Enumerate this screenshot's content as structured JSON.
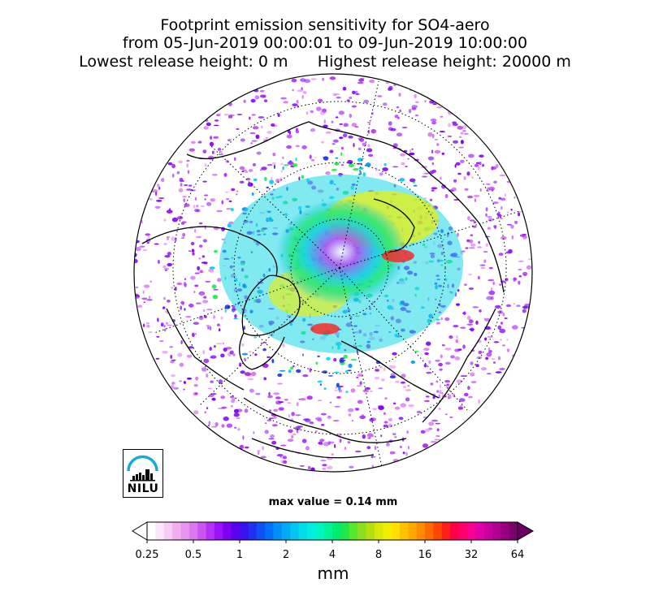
{
  "title": {
    "line1": "Footprint emission sensitivity for SO4-aero",
    "line2": "from 05-Jun-2019 00:00:01 to 09-Jun-2019 10:00:00",
    "line3": "Lowest release height: 0 m      Highest release height: 20000 m"
  },
  "logo": {
    "text": "NILU",
    "icon": "nilu-logo-icon"
  },
  "max_value_label": "max value = 0.14 mm",
  "colorbar": {
    "unit": "mm",
    "ticks": [
      "0.25",
      "0.5",
      "1",
      "2",
      "4",
      "8",
      "16",
      "32",
      "64"
    ],
    "extend": "both",
    "colors": [
      "#ffffff",
      "#fbe6fb",
      "#f7ccf7",
      "#f0b0f0",
      "#e796ef",
      "#dc78ef",
      "#cc55f2",
      "#b52ff5",
      "#9a10f7",
      "#7d00f5",
      "#5a00f0",
      "#3a10f0",
      "#2030f0",
      "#1050f5",
      "#0070f8",
      "#0090f8",
      "#00aaf5",
      "#00c5f0",
      "#00dde6",
      "#00eedd",
      "#00f5c0",
      "#00f29a",
      "#00ec70",
      "#20e84c",
      "#58e630",
      "#8ae020",
      "#b4e010",
      "#d8e808",
      "#f2ee00",
      "#ffe000",
      "#ffc400",
      "#ffa800",
      "#ff8c00",
      "#ff6a00",
      "#ff4400",
      "#ff1e1e",
      "#ff0044",
      "#ff006a",
      "#f50090",
      "#e000a6",
      "#c800a0",
      "#b00090",
      "#96007e",
      "#7c006c"
    ],
    "over_color": "#6a0060",
    "under_color": "#ffffff"
  },
  "map": {
    "projection": "north-polar-stereographic",
    "graticule": "dotted"
  }
}
